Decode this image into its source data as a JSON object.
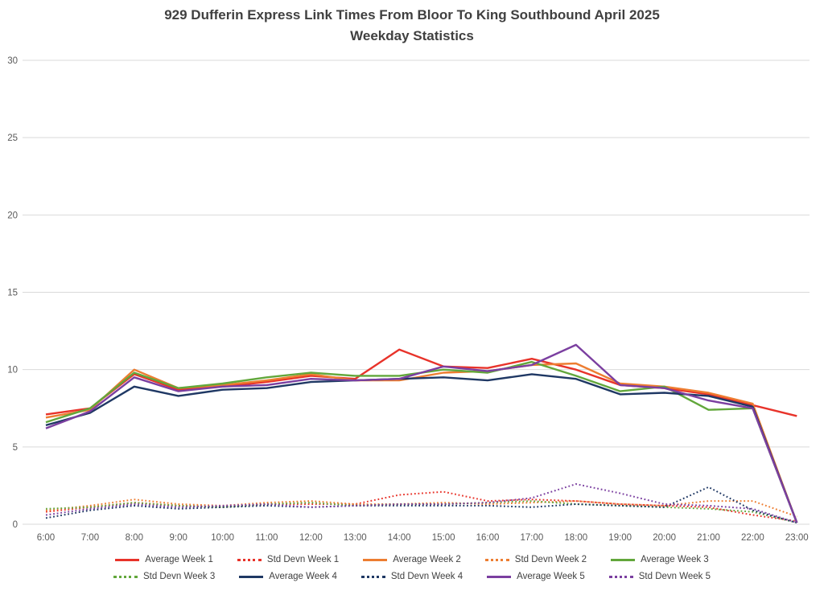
{
  "chart_data": {
    "type": "line",
    "title": "929 Dufferin Express Link Times From Bloor To King Southbound April 2025",
    "subtitle": "Weekday Statistics",
    "xlabel": "",
    "ylabel": "",
    "ylim": [
      0,
      30
    ],
    "yticks": [
      0,
      5,
      10,
      15,
      20,
      25,
      30
    ],
    "grid": "horizontal",
    "gridline_color": "#d9d9d9",
    "axis_text_color": "#595959",
    "legend_position": "bottom",
    "x": [
      "6:00",
      "7:00",
      "8:00",
      "9:00",
      "10:00",
      "11:00",
      "12:00",
      "13:00",
      "14:00",
      "15:00",
      "16:00",
      "17:00",
      "18:00",
      "19:00",
      "20:00",
      "21:00",
      "22:00",
      "23:00"
    ],
    "series": [
      {
        "name": "Average Week 1",
        "style": "solid",
        "color": "#e8332a",
        "values": [
          7.1,
          7.5,
          9.7,
          8.7,
          8.9,
          9.2,
          9.6,
          9.4,
          11.3,
          10.2,
          10.1,
          10.7,
          10.0,
          9.0,
          8.8,
          8.4,
          7.7,
          7.0
        ]
      },
      {
        "name": "Std Devn Week 1",
        "style": "dotted",
        "color": "#e8332a",
        "values": [
          0.8,
          1.1,
          1.4,
          1.2,
          1.1,
          1.3,
          1.3,
          1.3,
          1.9,
          2.1,
          1.5,
          1.6,
          1.5,
          1.3,
          1.2,
          1.1,
          0.6,
          0.2
        ]
      },
      {
        "name": "Average Week 2",
        "style": "solid",
        "color": "#ed7d31",
        "values": [
          6.9,
          7.4,
          10.0,
          8.8,
          9.0,
          9.3,
          9.7,
          9.3,
          9.3,
          9.8,
          9.9,
          10.3,
          10.4,
          9.1,
          8.9,
          8.5,
          7.8,
          0.1
        ]
      },
      {
        "name": "Std Devn Week 2",
        "style": "dotted",
        "color": "#ed7d31",
        "values": [
          0.9,
          1.2,
          1.6,
          1.3,
          1.2,
          1.4,
          1.5,
          1.3,
          1.3,
          1.4,
          1.3,
          1.4,
          1.5,
          1.3,
          1.2,
          1.5,
          1.5,
          0.5
        ]
      },
      {
        "name": "Average Week 3",
        "style": "solid",
        "color": "#62a73b",
        "values": [
          6.6,
          7.5,
          9.8,
          8.8,
          9.1,
          9.5,
          9.8,
          9.6,
          9.6,
          10.0,
          9.8,
          10.5,
          9.6,
          8.6,
          8.9,
          7.4,
          7.5,
          0.1
        ]
      },
      {
        "name": "Std Devn Week 3",
        "style": "dotted",
        "color": "#62a73b",
        "values": [
          1.0,
          1.1,
          1.4,
          1.2,
          1.1,
          1.3,
          1.4,
          1.2,
          1.3,
          1.3,
          1.4,
          1.5,
          1.3,
          1.2,
          1.1,
          1.0,
          0.8,
          0.1
        ]
      },
      {
        "name": "Average Week 4",
        "style": "solid",
        "color": "#1f3864",
        "values": [
          6.4,
          7.2,
          8.9,
          8.3,
          8.7,
          8.8,
          9.2,
          9.3,
          9.4,
          9.5,
          9.3,
          9.7,
          9.4,
          8.4,
          8.5,
          8.3,
          7.6,
          0.1
        ]
      },
      {
        "name": "Std Devn Week 4",
        "style": "dotted",
        "color": "#1f3864",
        "values": [
          0.4,
          0.9,
          1.2,
          1.0,
          1.1,
          1.2,
          1.1,
          1.2,
          1.2,
          1.2,
          1.2,
          1.1,
          1.3,
          1.2,
          1.1,
          2.4,
          0.9,
          0.1
        ]
      },
      {
        "name": "Average Week 5",
        "style": "solid",
        "color": "#7b3fa0",
        "values": [
          6.2,
          7.3,
          9.5,
          8.6,
          8.9,
          9.0,
          9.4,
          9.3,
          9.4,
          10.2,
          9.9,
          10.3,
          11.6,
          9.0,
          8.8,
          8.0,
          7.5,
          0.1
        ]
      },
      {
        "name": "Std Devn Week 5",
        "style": "dotted",
        "color": "#7b3fa0",
        "values": [
          0.6,
          1.0,
          1.3,
          1.1,
          1.2,
          1.3,
          1.1,
          1.2,
          1.3,
          1.3,
          1.4,
          1.7,
          2.6,
          2.0,
          1.3,
          1.2,
          1.0,
          0.1
        ]
      }
    ],
    "legend_rows": [
      [
        0,
        1,
        2,
        3,
        4
      ],
      [
        5,
        6,
        7,
        8,
        9
      ]
    ]
  }
}
